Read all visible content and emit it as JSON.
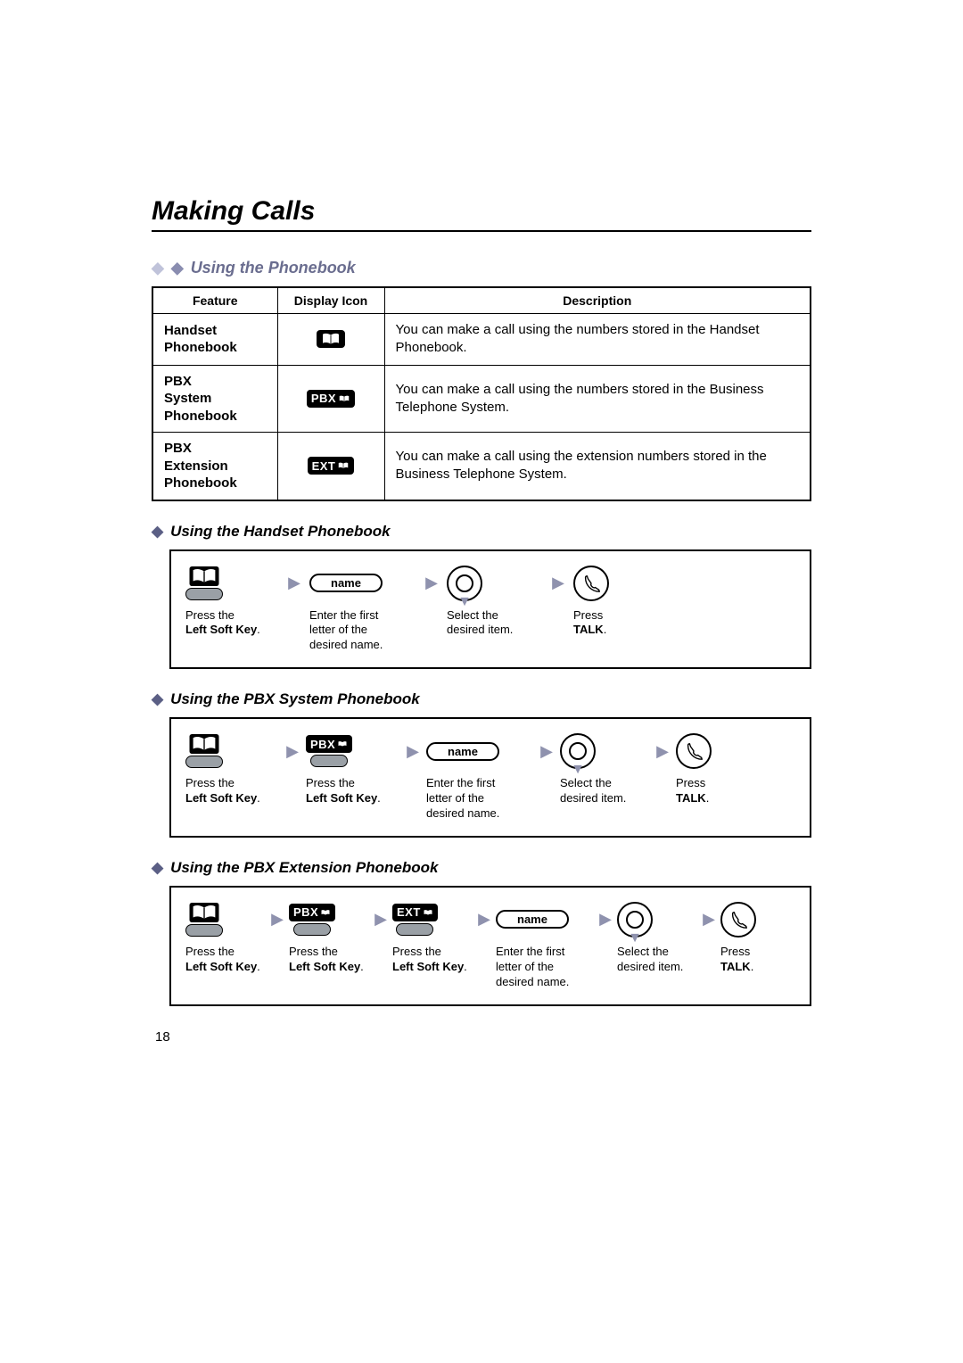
{
  "page": {
    "title": "Making Calls",
    "number": "18"
  },
  "section_phonebook": {
    "heading": "Using the Phonebook"
  },
  "feature_table": {
    "columns": [
      "Feature",
      "Display Icon",
      "Description"
    ],
    "rows": [
      {
        "feature": "Handset Phonebook",
        "icon_type": "book",
        "icon_text": "",
        "description": "You can make a call using the numbers stored in the Handset Phonebook."
      },
      {
        "feature": "PBX System Phonebook",
        "icon_type": "pbx",
        "icon_text": "PBX",
        "description": "You can make a call using the numbers stored in the Business Telephone System."
      },
      {
        "feature": "PBX Extension Phonebook",
        "icon_type": "ext",
        "icon_text": "EXT",
        "description": "You can make a call using the extension numbers stored in the Business Telephone System."
      }
    ]
  },
  "flows": {
    "handset": {
      "heading": "Using the Handset Phonebook",
      "step_widths": [
        105,
        18,
        120,
        18,
        108,
        18,
        70
      ],
      "steps": [
        {
          "type": "softkey_book",
          "label_pre": "Press the",
          "label_bold": "Left Soft Key",
          "label_post": "."
        },
        {
          "type": "arrow"
        },
        {
          "type": "name",
          "text": "name",
          "label_pre": "Enter the first letter of the desired name."
        },
        {
          "type": "arrow"
        },
        {
          "type": "nav",
          "label_pre": "Select the desired item."
        },
        {
          "type": "arrow"
        },
        {
          "type": "talk",
          "label_pre": "Press",
          "label_bold": "TALK",
          "label_post": "."
        }
      ]
    },
    "pbx_system": {
      "heading": "Using the PBX System Phonebook",
      "step_widths": [
        105,
        14,
        105,
        14,
        120,
        14,
        100,
        14,
        60
      ],
      "steps": [
        {
          "type": "softkey_book",
          "label_pre": "Press the",
          "label_bold": "Left Soft Key",
          "label_post": "."
        },
        {
          "type": "arrow"
        },
        {
          "type": "softkey_pbx",
          "icon_text": "PBX",
          "label_pre": "Press the",
          "label_bold": "Left Soft Key",
          "label_post": "."
        },
        {
          "type": "arrow"
        },
        {
          "type": "name",
          "text": "name",
          "label_pre": "Enter the first letter of the desired name."
        },
        {
          "type": "arrow"
        },
        {
          "type": "nav",
          "label_pre": "Select the desired item."
        },
        {
          "type": "arrow"
        },
        {
          "type": "talk",
          "label_pre": "Press",
          "label_bold": "TALK",
          "label_post": "."
        }
      ]
    },
    "pbx_ext": {
      "heading": "Using the PBX Extension Phonebook",
      "step_widths": [
        90,
        10,
        90,
        10,
        90,
        10,
        110,
        10,
        90,
        10,
        55
      ],
      "steps": [
        {
          "type": "softkey_book",
          "label_pre": "Press the",
          "label_bold": "Left Soft Key",
          "label_post": "."
        },
        {
          "type": "arrow"
        },
        {
          "type": "softkey_pbx",
          "icon_text": "PBX",
          "label_pre": "Press the",
          "label_bold": "Left Soft Key",
          "label_post": "."
        },
        {
          "type": "arrow"
        },
        {
          "type": "softkey_ext",
          "icon_text": "EXT",
          "label_pre": "Press the",
          "label_bold": "Left Soft Key",
          "label_post": "."
        },
        {
          "type": "arrow"
        },
        {
          "type": "name",
          "text": "name",
          "label_pre": "Enter the first letter of the desired name."
        },
        {
          "type": "arrow"
        },
        {
          "type": "nav",
          "label_pre": "Select the desired item."
        },
        {
          "type": "arrow"
        },
        {
          "type": "talk",
          "label_pre": "Press",
          "label_bold": "TALK",
          "label_post": "."
        }
      ]
    }
  },
  "colors": {
    "diamond_light": "#c0c3da",
    "diamond_mid": "#8a8db0",
    "diamond_dark": "#5b5f85",
    "arrow": "#8f92ae"
  }
}
